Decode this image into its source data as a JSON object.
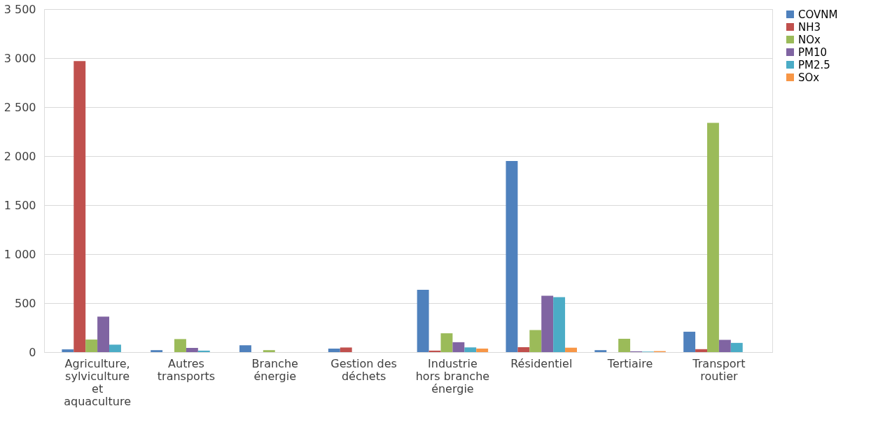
{
  "chart_data": {
    "type": "bar",
    "categories": [
      "Agriculture, sylviculture et aquaculture",
      "Autres transports",
      "Branche énergie",
      "Gestion des déchets",
      "Industrie hors branche énergie",
      "Résidentiel",
      "Tertiaire",
      "Transport routier"
    ],
    "series": [
      {
        "name": "COVNM",
        "color": "#4f81bd",
        "values": [
          28,
          20,
          69,
          35,
          635,
          1950,
          20,
          208
        ]
      },
      {
        "name": "NH3",
        "color": "#c0504d",
        "values": [
          2970,
          0,
          0,
          47,
          15,
          50,
          0,
          30
        ]
      },
      {
        "name": "NOx",
        "color": "#9bbb59",
        "values": [
          128,
          133,
          20,
          0,
          192,
          225,
          136,
          2340
        ]
      },
      {
        "name": "PM10",
        "color": "#8064a2",
        "values": [
          362,
          43,
          0,
          0,
          101,
          575,
          8,
          125
        ]
      },
      {
        "name": "PM2.5",
        "color": "#4bacc6",
        "values": [
          76,
          15,
          0,
          0,
          48,
          560,
          5,
          94
        ]
      },
      {
        "name": "SOx",
        "color": "#f79646",
        "values": [
          0,
          0,
          0,
          0,
          36,
          45,
          10,
          0
        ]
      }
    ],
    "ylim": [
      0,
      3500
    ],
    "yticks": [
      {
        "value": 0,
        "label": "0"
      },
      {
        "value": 500,
        "label": "500"
      },
      {
        "value": 1000,
        "label": "1 000"
      },
      {
        "value": 1500,
        "label": "1 500"
      },
      {
        "value": 2000,
        "label": "2 000"
      },
      {
        "value": 2500,
        "label": "2 500"
      },
      {
        "value": 3000,
        "label": "3 000"
      },
      {
        "value": 3500,
        "label": "3 500"
      }
    ],
    "grid": "y",
    "legend": "right"
  }
}
